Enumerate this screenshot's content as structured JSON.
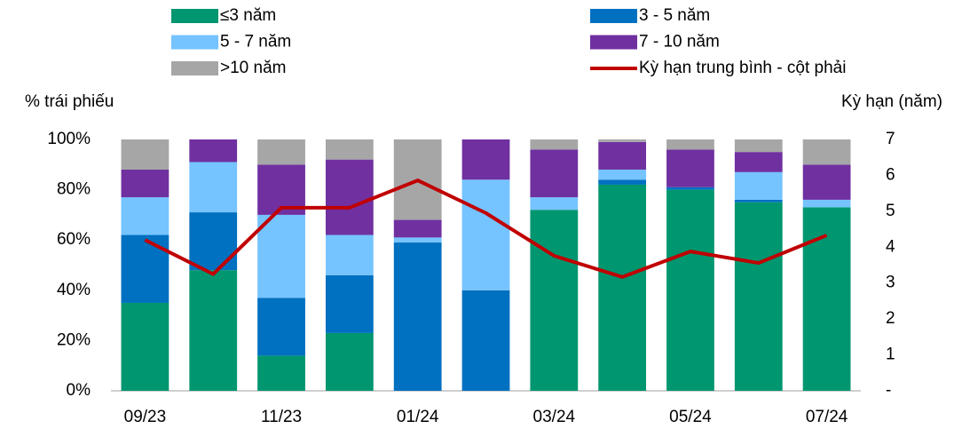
{
  "chart_data": {
    "type": "bar",
    "stacked": true,
    "ylabel": "% trái phiếu",
    "y2label": "Kỳ hạn (năm)",
    "categories": [
      "09/23",
      null,
      "11/23",
      null,
      "01/24",
      null,
      "03/24",
      null,
      "05/24",
      null,
      "07/24"
    ],
    "series": [
      {
        "name": "≤3 năm",
        "color": "#00966f",
        "values": [
          35,
          48,
          14,
          23,
          0,
          0,
          72,
          82,
          80,
          75,
          73
        ]
      },
      {
        "name": "3 - 5 năm",
        "color": "#0070c0",
        "values": [
          27,
          23,
          23,
          23,
          59,
          40,
          0,
          2,
          1,
          1,
          0
        ]
      },
      {
        "name": "5 - 7 năm",
        "color": "#75c3ff",
        "values": [
          15,
          20,
          33,
          16,
          2,
          44,
          5,
          4,
          0,
          11,
          3
        ]
      },
      {
        "name": "7 - 10 năm",
        "color": "#7030a0",
        "values": [
          11,
          9,
          20,
          30,
          7,
          16,
          19,
          11,
          15,
          8,
          14
        ]
      },
      {
        "name": ">10 năm",
        "color": "#a6a6a6",
        "values": [
          12,
          0,
          10,
          8,
          32,
          0,
          4,
          1,
          4,
          5,
          10
        ]
      },
      {
        "name": "Kỳ hạn trung bình - cột phải",
        "type": "line",
        "axis": "y2",
        "color": "#c00000",
        "values": [
          4.2,
          3.25,
          5.1,
          5.1,
          5.86,
          4.95,
          3.76,
          3.17,
          3.88,
          3.56,
          4.33
        ]
      }
    ],
    "ylim": [
      0,
      100
    ],
    "yticks": [
      {
        "value": 0,
        "label": "0%"
      },
      {
        "value": 20,
        "label": "20%"
      },
      {
        "value": 40,
        "label": "40%"
      },
      {
        "value": 60,
        "label": "60%"
      },
      {
        "value": 80,
        "label": "80%"
      },
      {
        "value": 100,
        "label": "100%"
      }
    ],
    "y2lim": [
      0,
      7
    ],
    "y2ticks": [
      {
        "value": 0,
        "label": "-"
      },
      1,
      2,
      3,
      4,
      5,
      6,
      7
    ],
    "grid": false,
    "legend": "top"
  }
}
